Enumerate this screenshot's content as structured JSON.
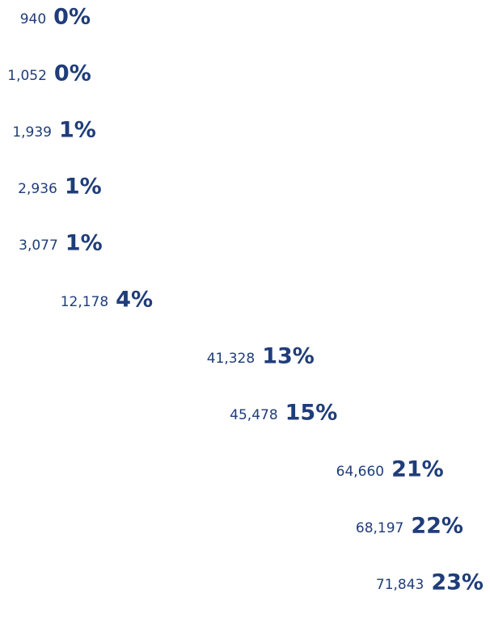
{
  "chart_data": {
    "type": "bar",
    "orientation": "horizontal",
    "color": "#1f3d7a",
    "values": [
      940,
      1052,
      1939,
      2936,
      3077,
      12178,
      41328,
      45478,
      64660,
      68197,
      71843
    ],
    "value_labels": [
      "940",
      "1,052",
      "1,939",
      "2,936",
      "3,077",
      "12,178",
      "41,328",
      "45,478",
      "64,660",
      "68,197",
      "71,843"
    ],
    "percentages": {
      "values": [
        0,
        0,
        1,
        1,
        1,
        4,
        13,
        15,
        21,
        22,
        23
      ],
      "value_labels": [
        "0%",
        "0%",
        "1%",
        "1%",
        "1%",
        "4%",
        "13%",
        "15%",
        "21%",
        "22%",
        "23%"
      ]
    }
  }
}
